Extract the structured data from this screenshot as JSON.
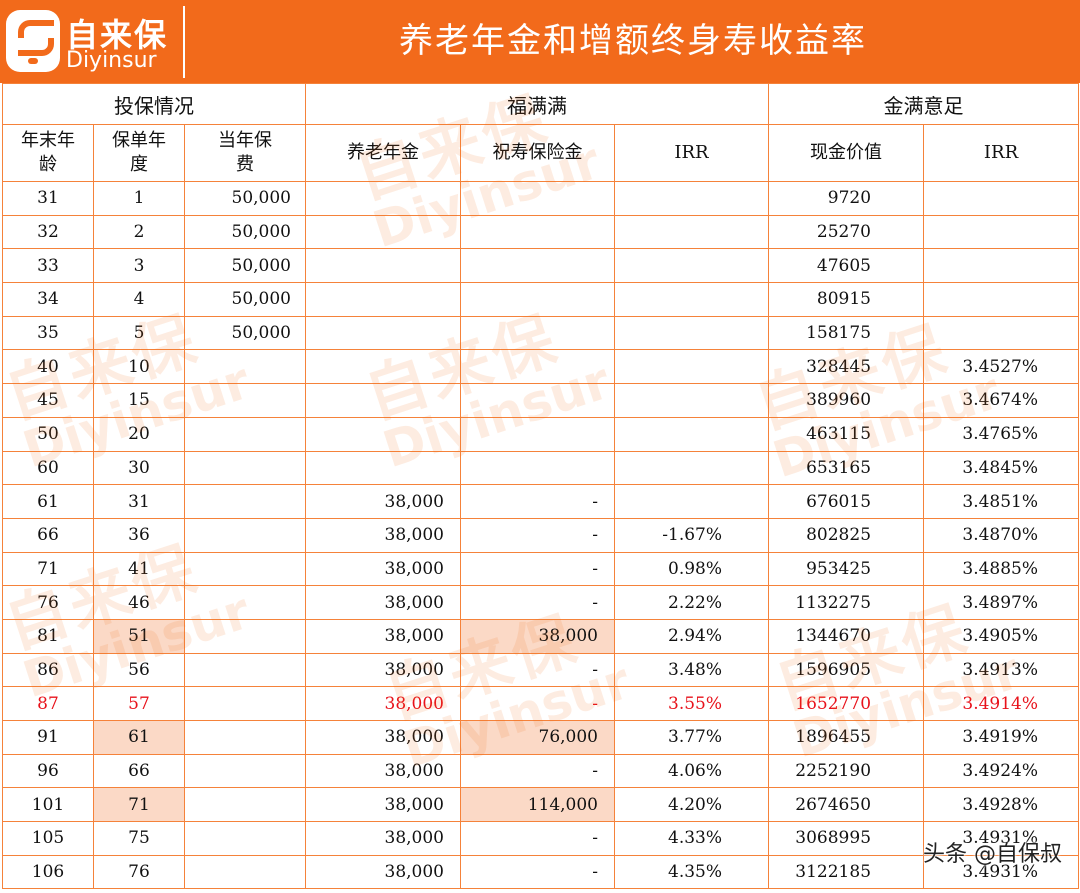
{
  "brand": {
    "name_cn": "自来保",
    "name_en": "Diyinsur"
  },
  "title": "养老年金和增额终身寿收益率",
  "groups": {
    "invest": "投保情况",
    "fmm": "福满满",
    "jmyz": "金满意足"
  },
  "columns": [
    "年末年龄",
    "保单年度",
    "当年保费",
    "养老年金",
    "祝寿保险金",
    "IRR",
    "现金价值",
    "IRR"
  ],
  "rows": [
    [
      "31",
      "1",
      "50,000",
      "",
      "",
      "",
      "9720",
      ""
    ],
    [
      "32",
      "2",
      "50,000",
      "",
      "",
      "",
      "25270",
      ""
    ],
    [
      "33",
      "3",
      "50,000",
      "",
      "",
      "",
      "47605",
      ""
    ],
    [
      "34",
      "4",
      "50,000",
      "",
      "",
      "",
      "80915",
      ""
    ],
    [
      "35",
      "5",
      "50,000",
      "",
      "",
      "",
      "158175",
      ""
    ],
    [
      "40",
      "10",
      "",
      "",
      "",
      "",
      "328445",
      "3.4527%"
    ],
    [
      "45",
      "15",
      "",
      "",
      "",
      "",
      "389960",
      "3.4674%"
    ],
    [
      "50",
      "20",
      "",
      "",
      "",
      "",
      "463115",
      "3.4765%"
    ],
    [
      "60",
      "30",
      "",
      "",
      "",
      "",
      "653165",
      "3.4845%"
    ],
    [
      "61",
      "31",
      "",
      "38,000",
      "-",
      "",
      "676015",
      "3.4851%"
    ],
    [
      "66",
      "36",
      "",
      "38,000",
      "-",
      "-1.67%",
      "802825",
      "3.4870%"
    ],
    [
      "71",
      "41",
      "",
      "38,000",
      "-",
      "0.98%",
      "953425",
      "3.4885%"
    ],
    [
      "76",
      "46",
      "",
      "38,000",
      "-",
      "2.22%",
      "1132275",
      "3.4897%"
    ],
    [
      "81",
      "51",
      "",
      "38,000",
      "38,000",
      "2.94%",
      "1344670",
      "3.4905%"
    ],
    [
      "86",
      "56",
      "",
      "38,000",
      "-",
      "3.48%",
      "1596905",
      "3.4913%"
    ],
    [
      "87",
      "57",
      "",
      "38,000",
      "-",
      "3.55%",
      "1652770",
      "3.4914%"
    ],
    [
      "91",
      "61",
      "",
      "38,000",
      "76,000",
      "3.77%",
      "1896455",
      "3.4919%"
    ],
    [
      "96",
      "66",
      "",
      "38,000",
      "-",
      "4.06%",
      "2252190",
      "3.4924%"
    ],
    [
      "101",
      "71",
      "",
      "38,000",
      "114,000",
      "4.20%",
      "2674650",
      "3.4928%"
    ],
    [
      "105",
      "75",
      "",
      "38,000",
      "-",
      "4.33%",
      "3068995",
      "3.4931%"
    ],
    [
      "106",
      "76",
      "",
      "38,000",
      "-",
      "4.35%",
      "3122185",
      "3.4931%"
    ]
  ],
  "highlighted_row_age": "87",
  "footer": "头条 @自保叔",
  "colors": {
    "brand_orange": "#f26a1b",
    "grid_line": "#f5823a",
    "highlight_fill": "#fbd9c6",
    "red_text": "#e8121b"
  }
}
